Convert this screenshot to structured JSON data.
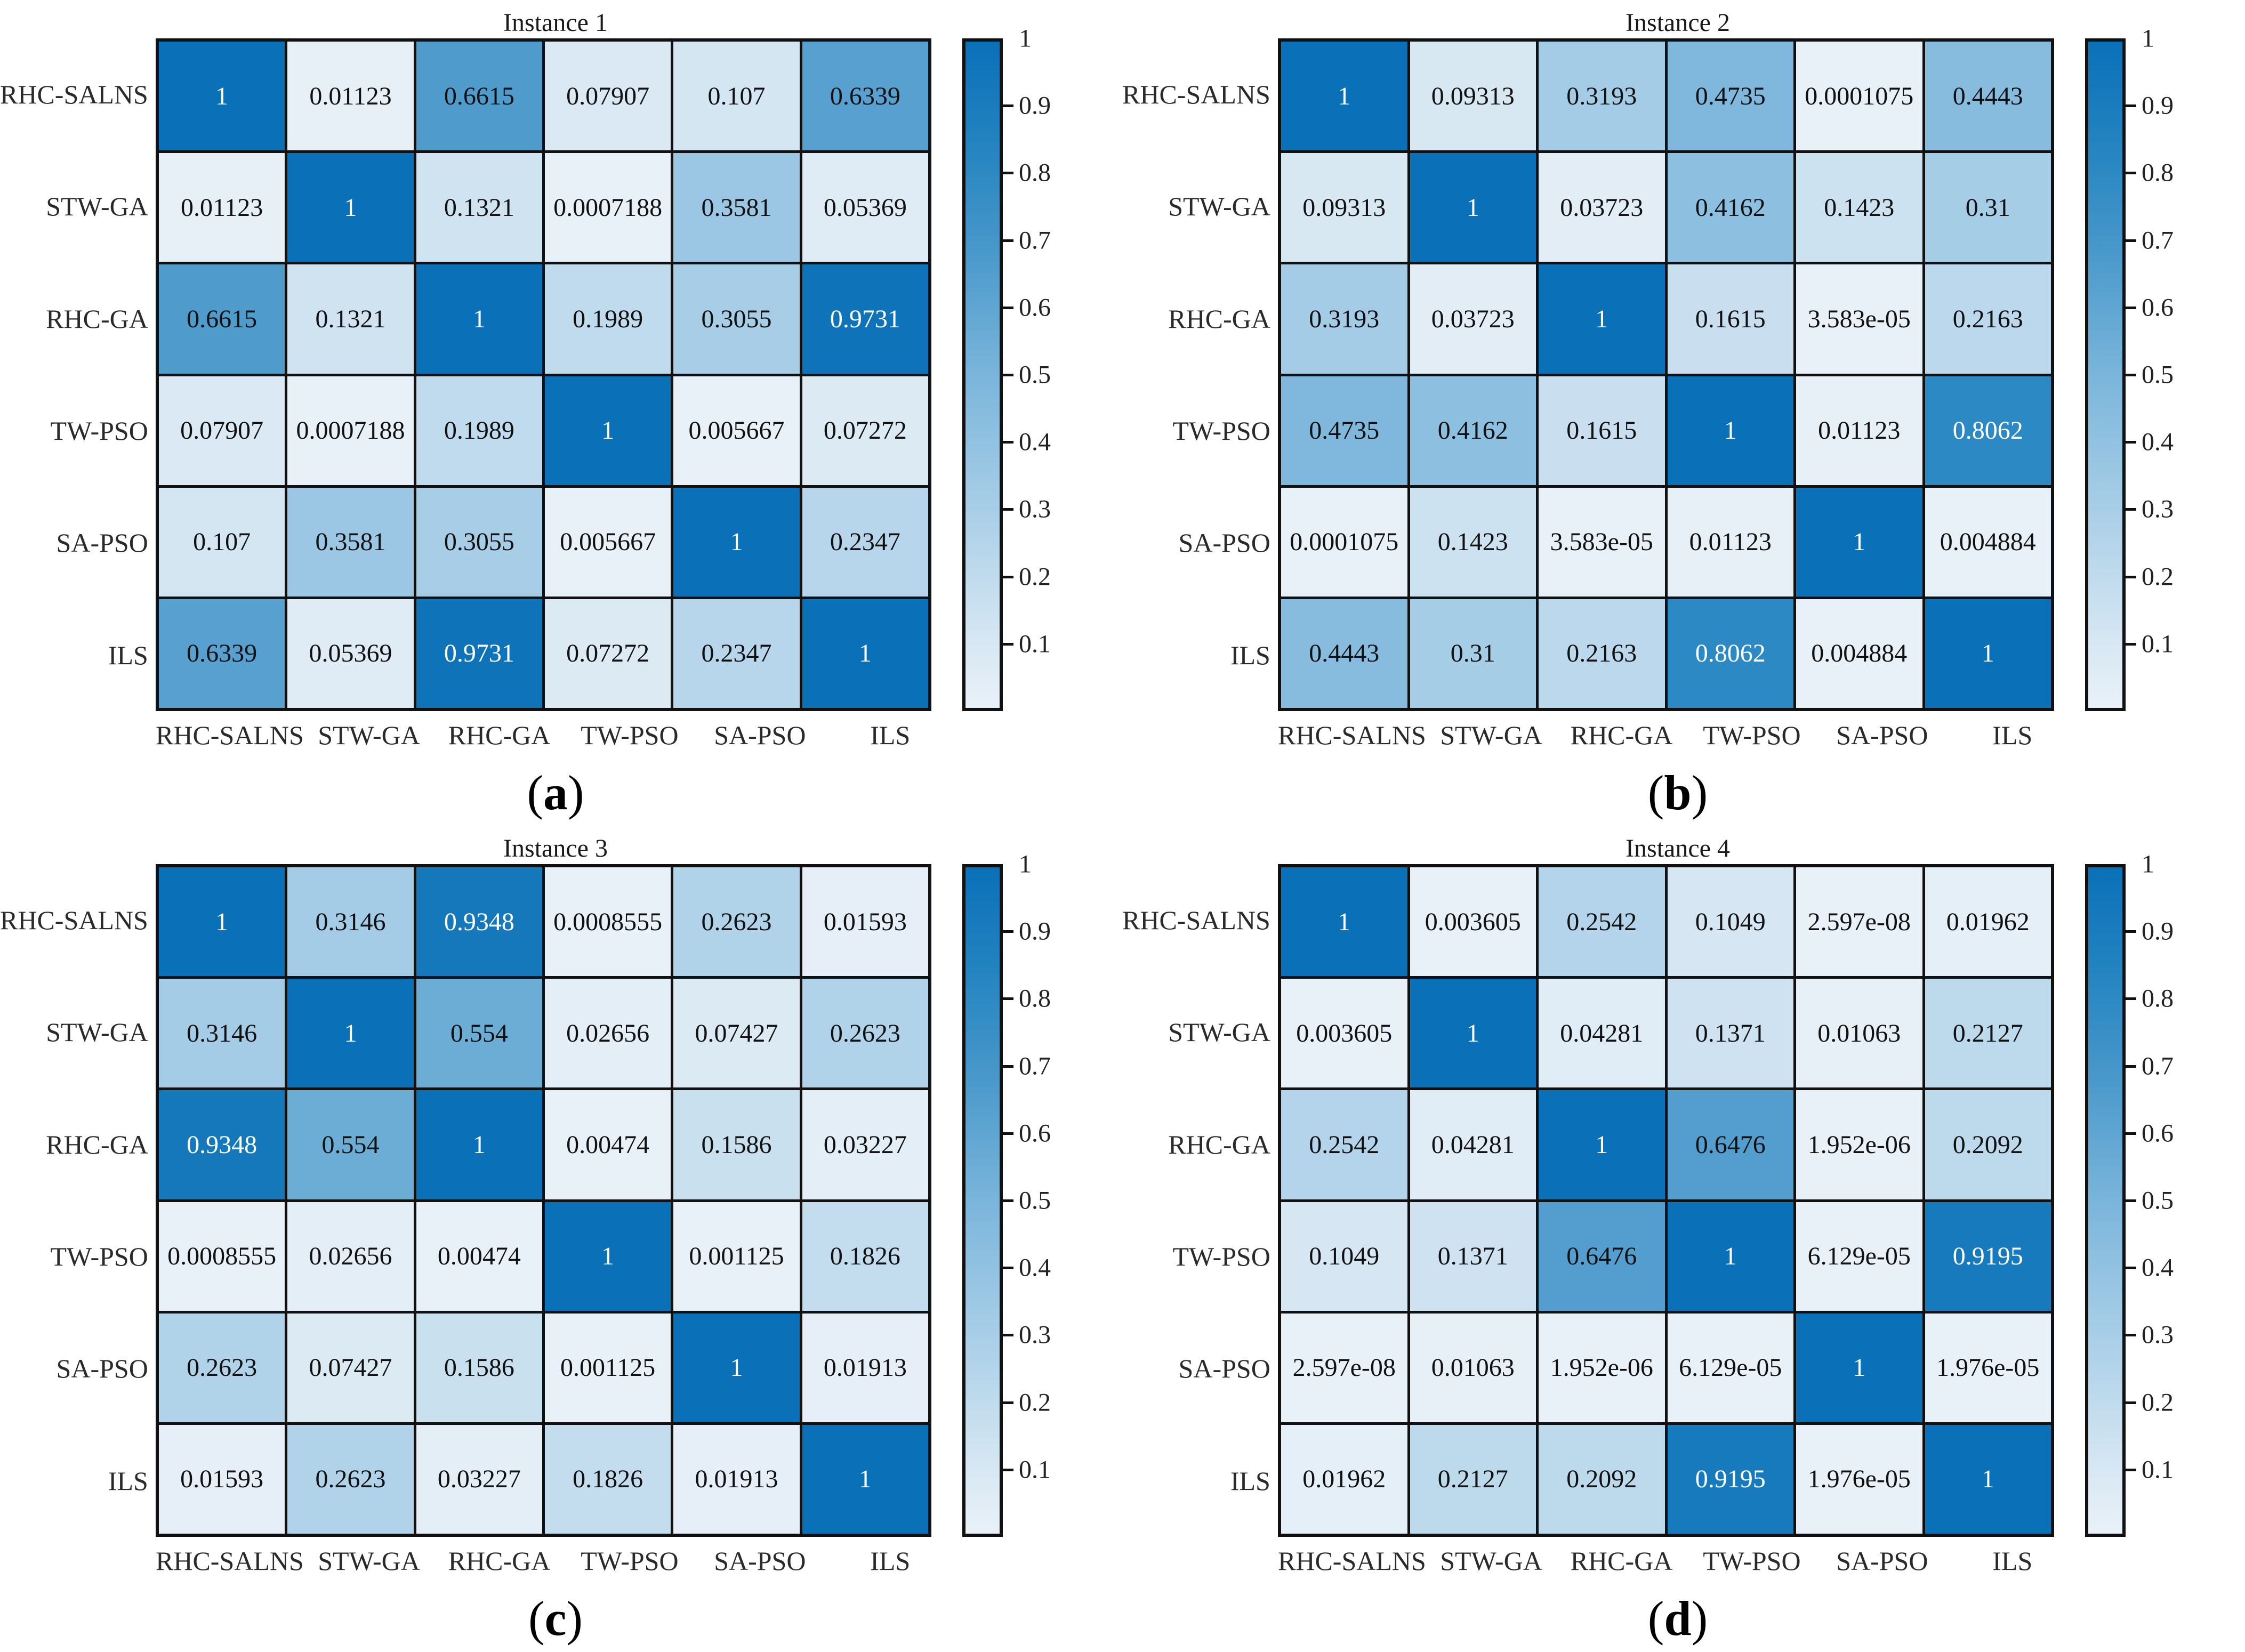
{
  "page": {
    "background": "#ffffff"
  },
  "style": {
    "colormap_stops": [
      [
        0.0,
        "#e9f1f8"
      ],
      [
        0.1,
        "#d7e7f3"
      ],
      [
        0.3,
        "#a8cee7"
      ],
      [
        0.5,
        "#7ab5db"
      ],
      [
        0.7,
        "#4596c9"
      ],
      [
        0.85,
        "#2383c0"
      ],
      [
        1.0,
        "#0a70b8"
      ]
    ],
    "grid_line_color": "#111111",
    "cell_text_dark": "#111111",
    "cell_text_light": "#ffffff",
    "white_text_threshold": 0.7
  },
  "colorbar": {
    "top_label": "1",
    "ticks": [
      "0.9",
      "0.8",
      "0.7",
      "0.6",
      "0.5",
      "0.4",
      "0.3",
      "0.2",
      "0.1"
    ],
    "min": 0,
    "max": 1
  },
  "chart_data": [
    {
      "type": "heatmap",
      "title": "Instance 1",
      "caption_letter": "a",
      "categories": [
        "RHC-SALNS",
        "STW-GA",
        "RHC-GA",
        "TW-PSO",
        "SA-PSO",
        "ILS"
      ],
      "values": [
        [
          1,
          0.01123,
          0.6615,
          0.07907,
          0.107,
          0.6339
        ],
        [
          0.01123,
          1,
          0.1321,
          0.0007188,
          0.3581,
          0.05369
        ],
        [
          0.6615,
          0.1321,
          1,
          0.1989,
          0.3055,
          0.9731
        ],
        [
          0.07907,
          0.0007188,
          0.1989,
          1,
          0.005667,
          0.07272
        ],
        [
          0.107,
          0.3581,
          0.3055,
          0.005667,
          1,
          0.2347
        ],
        [
          0.6339,
          0.05369,
          0.9731,
          0.07272,
          0.2347,
          1
        ]
      ],
      "labels": [
        [
          "1",
          "0.01123",
          "0.6615",
          "0.07907",
          "0.107",
          "0.6339"
        ],
        [
          "0.01123",
          "1",
          "0.1321",
          "0.0007188",
          "0.3581",
          "0.05369"
        ],
        [
          "0.6615",
          "0.1321",
          "1",
          "0.1989",
          "0.3055",
          "0.9731"
        ],
        [
          "0.07907",
          "0.0007188",
          "0.1989",
          "1",
          "0.005667",
          "0.07272"
        ],
        [
          "0.107",
          "0.3581",
          "0.3055",
          "0.005667",
          "1",
          "0.2347"
        ],
        [
          "0.6339",
          "0.05369",
          "0.9731",
          "0.07272",
          "0.2347",
          "1"
        ]
      ],
      "colorbar_range": [
        0,
        1
      ],
      "legend_position": "right"
    },
    {
      "type": "heatmap",
      "title": "Instance 2",
      "caption_letter": "b",
      "categories": [
        "RHC-SALNS",
        "STW-GA",
        "RHC-GA",
        "TW-PSO",
        "SA-PSO",
        "ILS"
      ],
      "values": [
        [
          1,
          0.09313,
          0.3193,
          0.4735,
          0.0001075,
          0.4443
        ],
        [
          0.09313,
          1,
          0.03723,
          0.4162,
          0.1423,
          0.31
        ],
        [
          0.3193,
          0.03723,
          1,
          0.1615,
          3.583e-05,
          0.2163
        ],
        [
          0.4735,
          0.4162,
          0.1615,
          1,
          0.01123,
          0.8062
        ],
        [
          0.0001075,
          0.1423,
          3.583e-05,
          0.01123,
          1,
          0.004884
        ],
        [
          0.4443,
          0.31,
          0.2163,
          0.8062,
          0.004884,
          1
        ]
      ],
      "labels": [
        [
          "1",
          "0.09313",
          "0.3193",
          "0.4735",
          "0.0001075",
          "0.4443"
        ],
        [
          "0.09313",
          "1",
          "0.03723",
          "0.4162",
          "0.1423",
          "0.31"
        ],
        [
          "0.3193",
          "0.03723",
          "1",
          "0.1615",
          "3.583e-05",
          "0.2163"
        ],
        [
          "0.4735",
          "0.4162",
          "0.1615",
          "1",
          "0.01123",
          "0.8062"
        ],
        [
          "0.0001075",
          "0.1423",
          "3.583e-05",
          "0.01123",
          "1",
          "0.004884"
        ],
        [
          "0.4443",
          "0.31",
          "0.2163",
          "0.8062",
          "0.004884",
          "1"
        ]
      ],
      "colorbar_range": [
        0,
        1
      ],
      "legend_position": "right"
    },
    {
      "type": "heatmap",
      "title": "Instance 3",
      "caption_letter": "c",
      "categories": [
        "RHC-SALNS",
        "STW-GA",
        "RHC-GA",
        "TW-PSO",
        "SA-PSO",
        "ILS"
      ],
      "values": [
        [
          1,
          0.3146,
          0.9348,
          0.0008555,
          0.2623,
          0.01593
        ],
        [
          0.3146,
          1,
          0.554,
          0.02656,
          0.07427,
          0.2623
        ],
        [
          0.9348,
          0.554,
          1,
          0.00474,
          0.1586,
          0.03227
        ],
        [
          0.0008555,
          0.02656,
          0.00474,
          1,
          0.001125,
          0.1826
        ],
        [
          0.2623,
          0.07427,
          0.1586,
          0.001125,
          1,
          0.01913
        ],
        [
          0.01593,
          0.2623,
          0.03227,
          0.1826,
          0.01913,
          1
        ]
      ],
      "labels": [
        [
          "1",
          "0.3146",
          "0.9348",
          "0.0008555",
          "0.2623",
          "0.01593"
        ],
        [
          "0.3146",
          "1",
          "0.554",
          "0.02656",
          "0.07427",
          "0.2623"
        ],
        [
          "0.9348",
          "0.554",
          "1",
          "0.00474",
          "0.1586",
          "0.03227"
        ],
        [
          "0.0008555",
          "0.02656",
          "0.00474",
          "1",
          "0.001125",
          "0.1826"
        ],
        [
          "0.2623",
          "0.07427",
          "0.1586",
          "0.001125",
          "1",
          "0.01913"
        ],
        [
          "0.01593",
          "0.2623",
          "0.03227",
          "0.1826",
          "0.01913",
          "1"
        ]
      ],
      "colorbar_range": [
        0,
        1
      ],
      "legend_position": "right"
    },
    {
      "type": "heatmap",
      "title": "Instance 4",
      "caption_letter": "d",
      "categories": [
        "RHC-SALNS",
        "STW-GA",
        "RHC-GA",
        "TW-PSO",
        "SA-PSO",
        "ILS"
      ],
      "values": [
        [
          1,
          0.003605,
          0.2542,
          0.1049,
          2.597e-08,
          0.01962
        ],
        [
          0.003605,
          1,
          0.04281,
          0.1371,
          0.01063,
          0.2127
        ],
        [
          0.2542,
          0.04281,
          1,
          0.6476,
          1.952e-06,
          0.2092
        ],
        [
          0.1049,
          0.1371,
          0.6476,
          1,
          6.129e-05,
          0.9195
        ],
        [
          2.597e-08,
          0.01063,
          1.952e-06,
          6.129e-05,
          1,
          1.976e-05
        ],
        [
          0.01962,
          0.2127,
          0.2092,
          0.9195,
          1.976e-05,
          1
        ]
      ],
      "labels": [
        [
          "1",
          "0.003605",
          "0.2542",
          "0.1049",
          "2.597e-08",
          "0.01962"
        ],
        [
          "0.003605",
          "1",
          "0.04281",
          "0.1371",
          "0.01063",
          "0.2127"
        ],
        [
          "0.2542",
          "0.04281",
          "1",
          "0.6476",
          "1.952e-06",
          "0.2092"
        ],
        [
          "0.1049",
          "0.1371",
          "0.6476",
          "1",
          "6.129e-05",
          "0.9195"
        ],
        [
          "2.597e-08",
          "0.01063",
          "1.952e-06",
          "6.129e-05",
          "1",
          "1.976e-05"
        ],
        [
          "0.01962",
          "0.2127",
          "0.2092",
          "0.9195",
          "1.976e-05",
          "1"
        ]
      ],
      "colorbar_range": [
        0,
        1
      ],
      "legend_position": "right"
    }
  ]
}
